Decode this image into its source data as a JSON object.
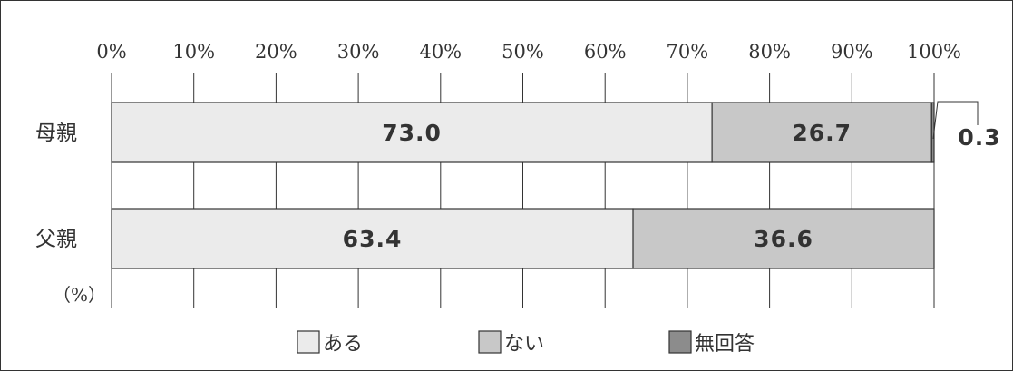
{
  "chart_data": {
    "type": "bar",
    "orientation": "horizontal",
    "stacked": true,
    "x_ticks": [
      "0%",
      "10%",
      "20%",
      "30%",
      "40%",
      "50%",
      "60%",
      "70%",
      "80%",
      "90%",
      "100%"
    ],
    "xlim": [
      0,
      100
    ],
    "unit_label": "（%）",
    "categories": [
      "母親",
      "父親"
    ],
    "series": [
      {
        "name": "ある",
        "values": [
          73.0,
          63.4
        ],
        "labels": [
          "73.0",
          "63.4"
        ],
        "color": "#ebebeb"
      },
      {
        "name": "ない",
        "values": [
          26.7,
          36.6
        ],
        "labels": [
          "26.7",
          "36.6"
        ],
        "color": "#c8c8c8"
      },
      {
        "name": "無回答",
        "values": [
          0.3,
          0.0
        ],
        "labels": [
          "0.3",
          ""
        ],
        "color": "#8c8c8c"
      }
    ],
    "grid": true,
    "legend_position": "bottom"
  }
}
